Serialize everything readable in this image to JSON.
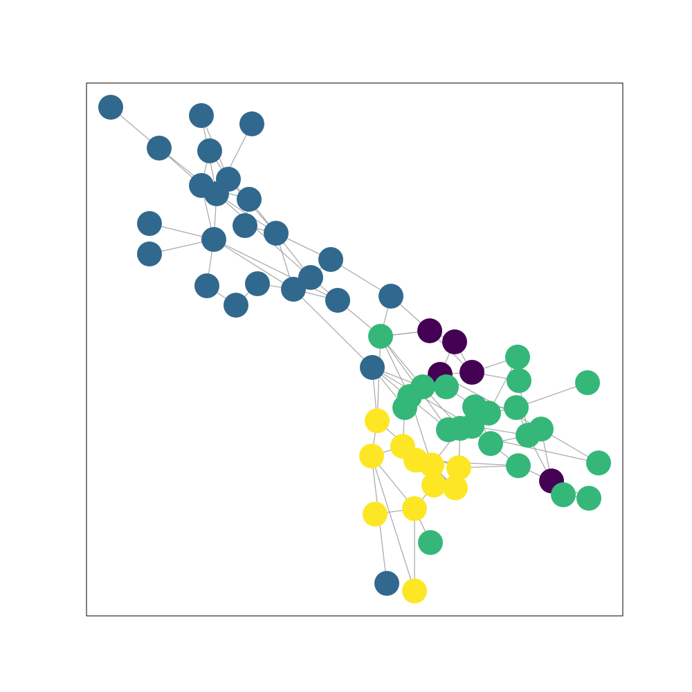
{
  "graph": {
    "node_colors": {
      "c0": "#440154",
      "c1": "#31688e",
      "c2": "#35b779",
      "c3": "#fde725"
    },
    "edge_color": "#9e9e9e",
    "axes_frame": "shown",
    "ticks": "hidden",
    "node_count": 68,
    "community_count": 4
  }
}
